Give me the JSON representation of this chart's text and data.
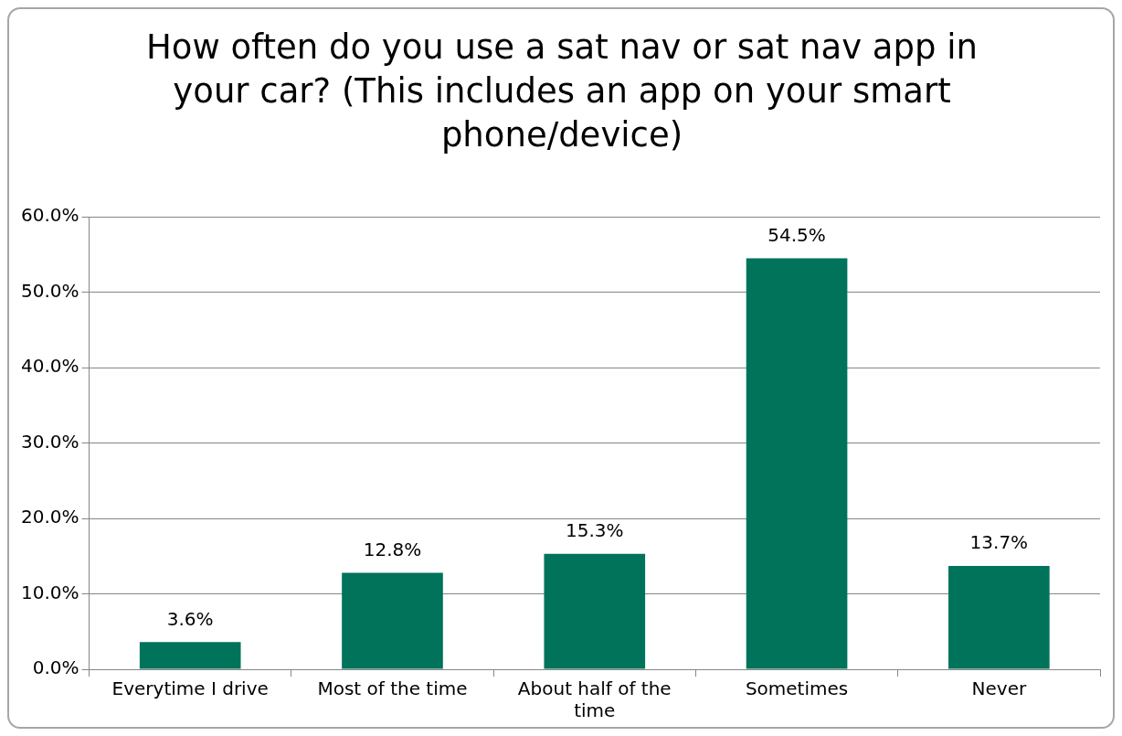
{
  "chart_data": {
    "type": "bar",
    "title": "How often do you use a sat nav or sat nav app in your car? (This includes an app on your smart phone/device)",
    "categories": [
      "Everytime I drive",
      "Most of the time",
      "About half of the time",
      "Sometimes",
      "Never"
    ],
    "values": [
      3.6,
      12.8,
      15.3,
      54.5,
      13.7
    ],
    "value_labels": [
      "3.6%",
      "12.8%",
      "15.3%",
      "54.5%",
      "13.7%"
    ],
    "color": "#00735a",
    "ylim": [
      0,
      60
    ],
    "yticks": [
      {
        "value": 0,
        "label": "0.0%"
      },
      {
        "value": 10,
        "label": "10.0%"
      },
      {
        "value": 20,
        "label": "20.0%"
      },
      {
        "value": 30,
        "label": "30.0%"
      },
      {
        "value": 40,
        "label": "40.0%"
      },
      {
        "value": 50,
        "label": "50.0%"
      },
      {
        "value": 60,
        "label": "60.0%"
      }
    ],
    "grid": "y"
  }
}
